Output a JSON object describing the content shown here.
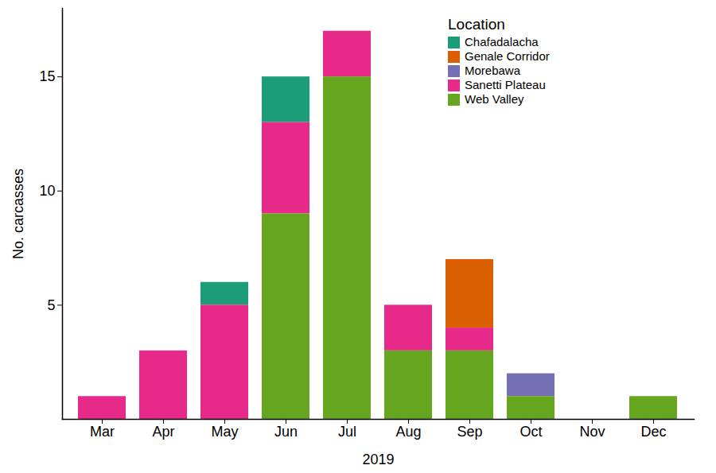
{
  "chart_data": {
    "type": "bar",
    "stacked": true,
    "x_label": "2019",
    "y_label": "No. carcasses",
    "categories": [
      "Mar",
      "Apr",
      "May",
      "Jun",
      "Jul",
      "Aug",
      "Sep",
      "Oct",
      "Nov",
      "Dec"
    ],
    "series": [
      {
        "name": "Chafadalacha",
        "color": "#1b9e77",
        "values": [
          0,
          0,
          1,
          2,
          0,
          0,
          0,
          0,
          0,
          0
        ]
      },
      {
        "name": "Genale Corridor",
        "color": "#d95f02",
        "values": [
          0,
          0,
          0,
          0,
          0,
          0,
          3,
          0,
          0,
          0
        ]
      },
      {
        "name": "Morebawa",
        "color": "#7570b3",
        "values": [
          0,
          0,
          0,
          0,
          0,
          0,
          0,
          1,
          0,
          0
        ]
      },
      {
        "name": "Sanetti Plateau",
        "color": "#e7298a",
        "values": [
          1,
          3,
          5,
          4,
          2,
          2,
          1,
          0,
          0,
          0
        ]
      },
      {
        "name": "Web Valley",
        "color": "#66a61e",
        "values": [
          0,
          0,
          0,
          9,
          15,
          3,
          3,
          1,
          0,
          1
        ]
      }
    ],
    "legend_title": "Location",
    "legend": "top-right",
    "ylim": [
      0,
      18
    ],
    "yticks": [
      5,
      10,
      15
    ],
    "grid": false
  }
}
